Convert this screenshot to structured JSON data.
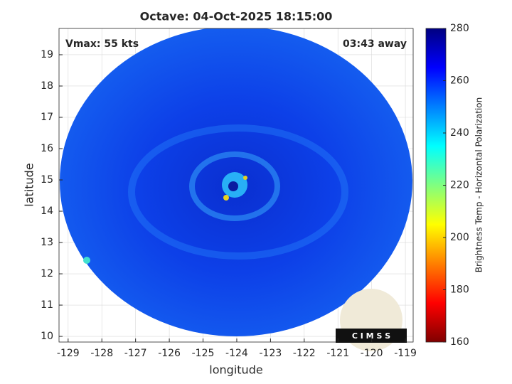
{
  "chart_data": {
    "type": "image",
    "title": "Octave: 04-Oct-2025 18:15:00",
    "annotations": [
      "Vmax: 55 kts",
      "03:43 away"
    ],
    "xlabel": "longitude",
    "ylabel": "latitude",
    "xlim": [
      -129.27,
      -118.77
    ],
    "xticks": [
      -129,
      -128,
      -127,
      -126,
      -125,
      -124,
      -123,
      -122,
      -121,
      -120,
      -119
    ],
    "ylim": [
      9.82,
      19.84
    ],
    "yticks": [
      10,
      11,
      12,
      13,
      14,
      15,
      16,
      17,
      18,
      19
    ],
    "grid": true,
    "colorbar": {
      "label": "Brightness Temp - Horizontal Polarization",
      "lim": [
        160,
        280
      ],
      "ticks": [
        160,
        180,
        200,
        220,
        240,
        260,
        280
      ]
    },
    "logo_text": "C I M S S"
  }
}
